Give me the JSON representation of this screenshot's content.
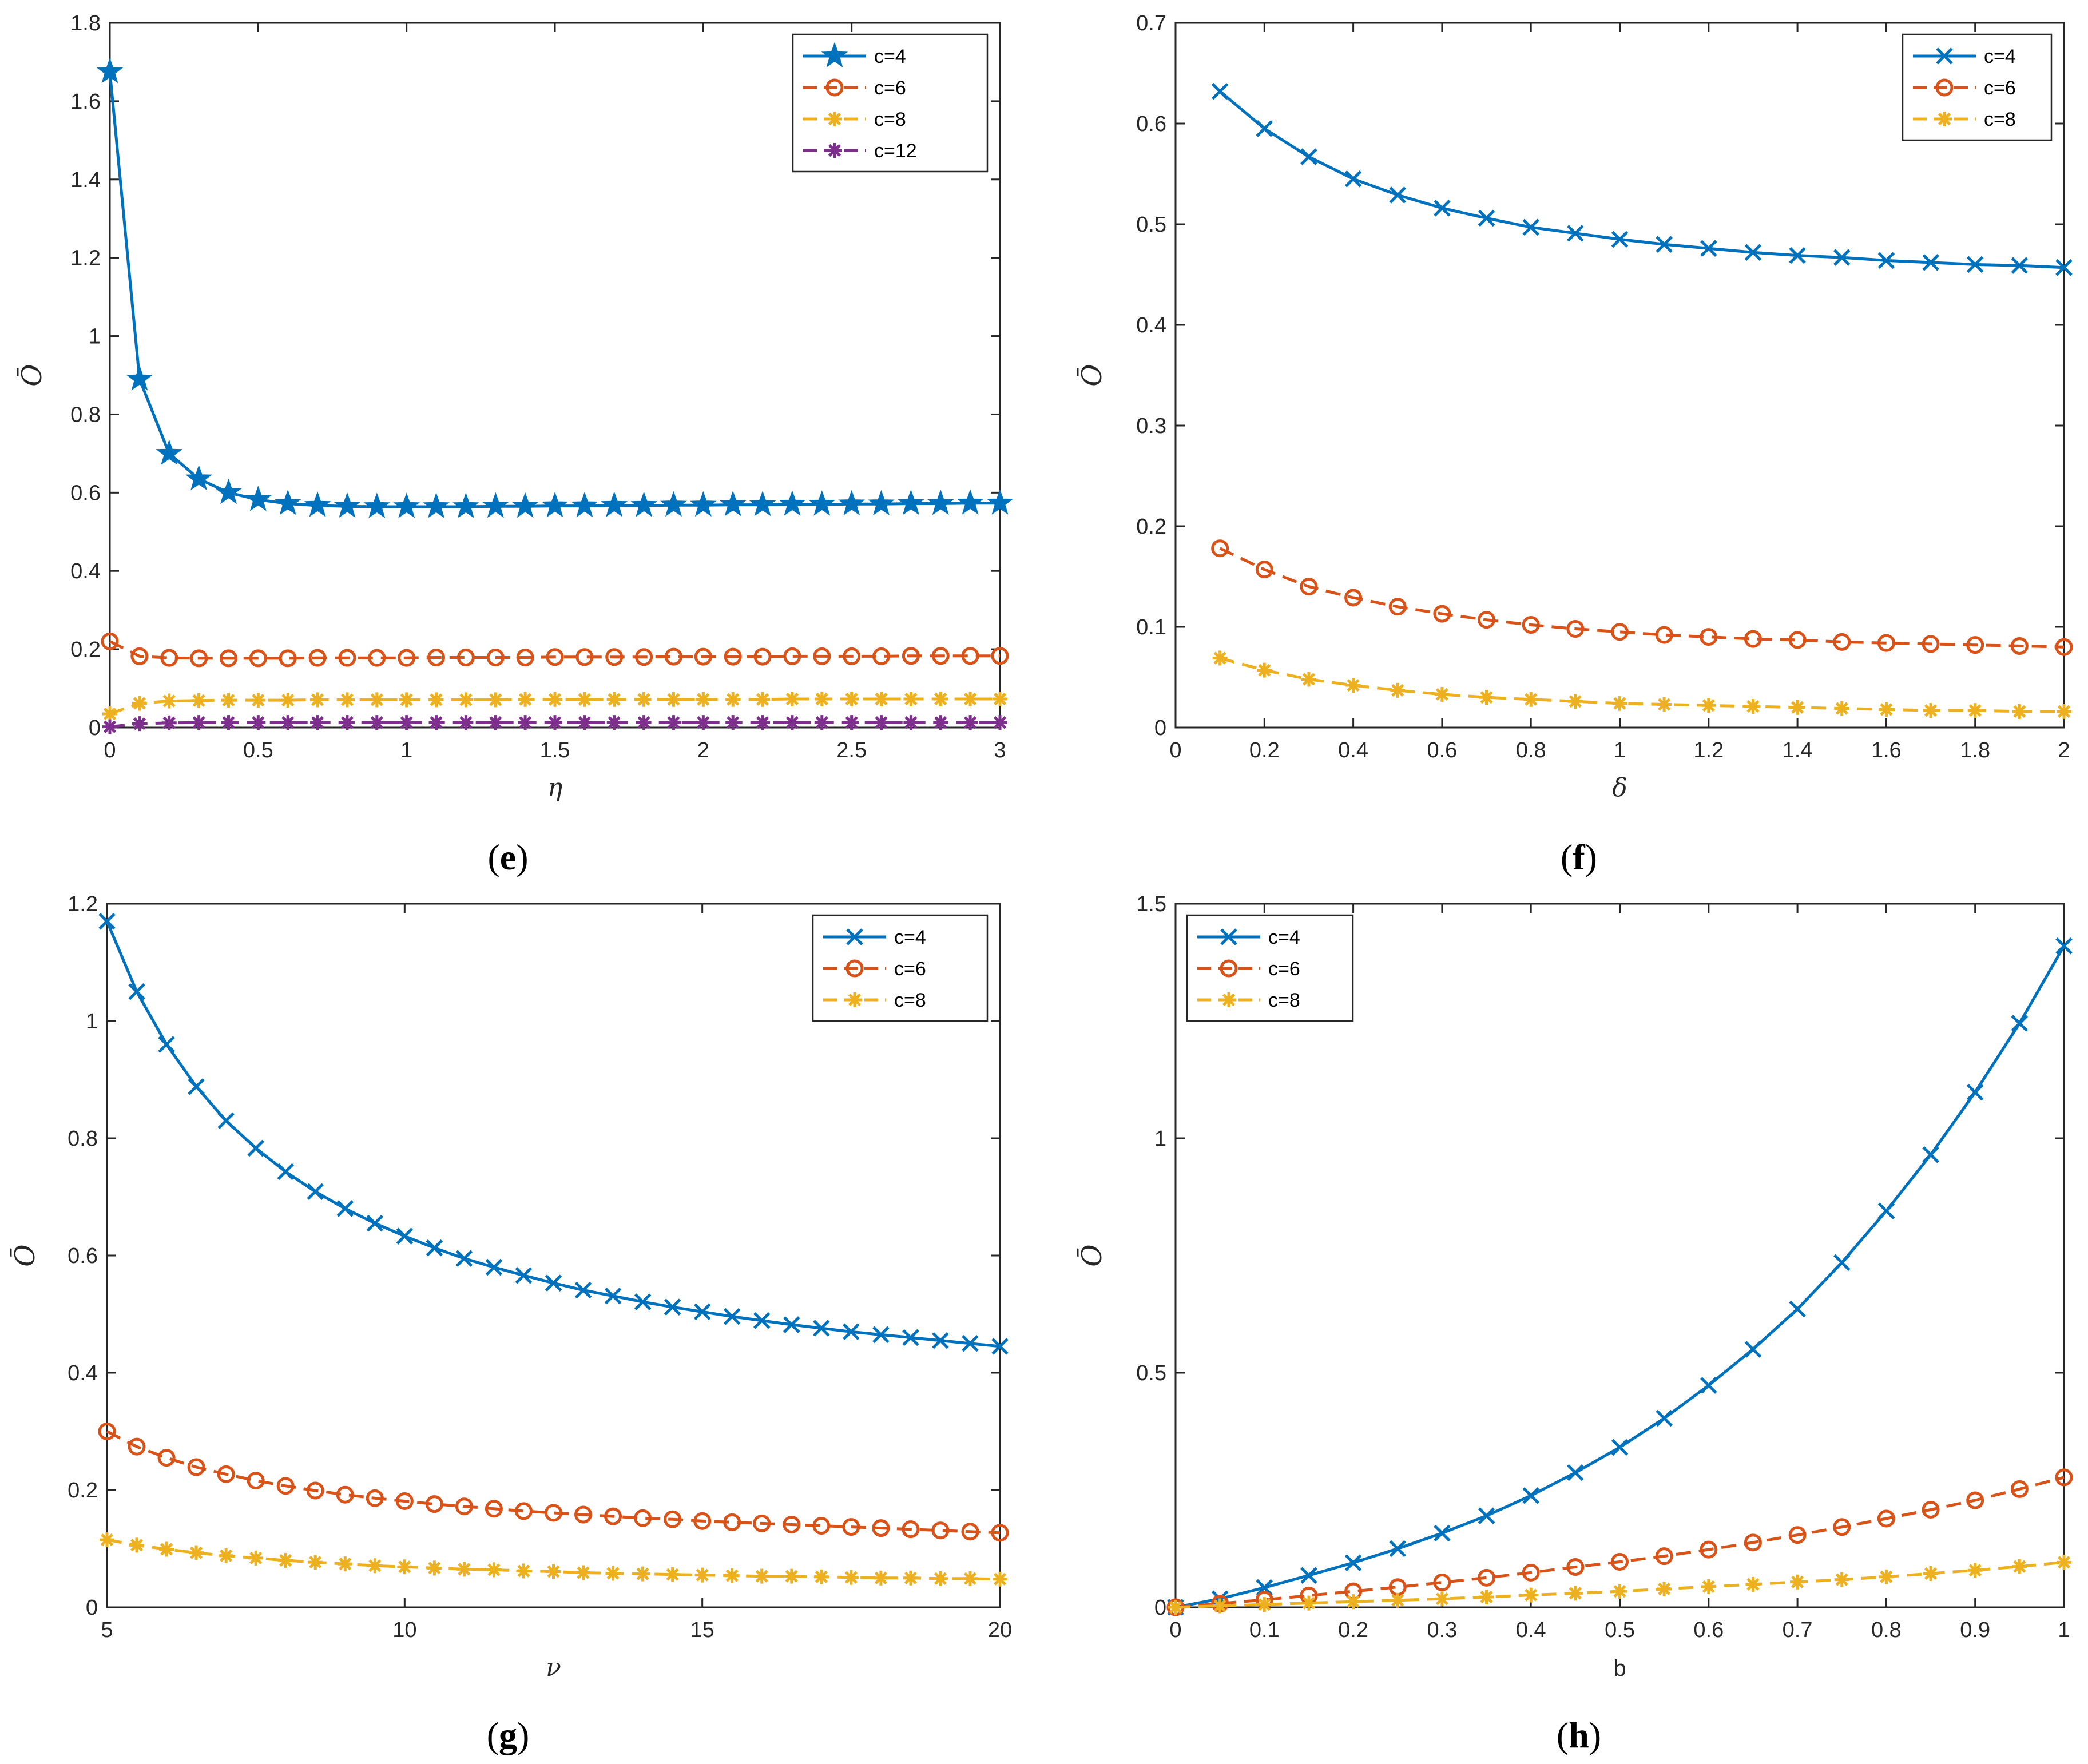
{
  "colors": {
    "c4": "#0072BD",
    "c6": "#D95319",
    "c8": "#EDB120",
    "c12": "#7E2F8E"
  },
  "chart_data": [
    {
      "id": "e",
      "type": "line",
      "caption_letter": "e",
      "xlabel": "η",
      "ylabel": "Ō",
      "xlim": [
        0,
        3
      ],
      "ylim": [
        0,
        1.8
      ],
      "xticks": [
        0,
        0.5,
        1,
        1.5,
        2,
        2.5,
        3
      ],
      "xtick_labels": [
        "0",
        "0.5",
        "1",
        "1.5",
        "2",
        "2.5",
        "3"
      ],
      "yticks": [
        0,
        0.2,
        0.4,
        0.6,
        0.8,
        1,
        1.2,
        1.4,
        1.6,
        1.8
      ],
      "ytick_labels": [
        "0",
        "0.2",
        "0.4",
        "0.6",
        "0.8",
        "1",
        "1.2",
        "1.4",
        "1.6",
        "1.8"
      ],
      "legend_position": "top-right",
      "x": [
        0,
        0.1,
        0.2,
        0.3,
        0.4,
        0.5,
        0.6,
        0.7,
        0.8,
        0.9,
        1.0,
        1.1,
        1.2,
        1.3,
        1.4,
        1.5,
        1.6,
        1.7,
        1.8,
        1.9,
        2.0,
        2.1,
        2.2,
        2.3,
        2.4,
        2.5,
        2.6,
        2.7,
        2.8,
        2.9,
        3.0
      ],
      "series": [
        {
          "name": "c=4",
          "color": "c4",
          "dash": "solid",
          "marker": "star",
          "values": [
            1.675,
            0.89,
            0.7,
            0.635,
            0.6,
            0.582,
            0.572,
            0.567,
            0.565,
            0.564,
            0.564,
            0.564,
            0.564,
            0.565,
            0.565,
            0.566,
            0.566,
            0.567,
            0.567,
            0.568,
            0.568,
            0.569,
            0.569,
            0.57,
            0.57,
            0.571,
            0.571,
            0.572,
            0.572,
            0.573,
            0.573
          ]
        },
        {
          "name": "c=6",
          "color": "c6",
          "dash": "dashed",
          "marker": "circle",
          "values": [
            0.22,
            0.182,
            0.178,
            0.177,
            0.177,
            0.177,
            0.177,
            0.178,
            0.178,
            0.178,
            0.178,
            0.179,
            0.179,
            0.179,
            0.179,
            0.18,
            0.18,
            0.18,
            0.18,
            0.181,
            0.181,
            0.181,
            0.181,
            0.182,
            0.182,
            0.182,
            0.182,
            0.183,
            0.183,
            0.183,
            0.183
          ]
        },
        {
          "name": "c=8",
          "color": "c8",
          "dash": "dashed",
          "marker": "asterisk",
          "values": [
            0.035,
            0.062,
            0.068,
            0.069,
            0.07,
            0.07,
            0.07,
            0.071,
            0.071,
            0.071,
            0.071,
            0.071,
            0.071,
            0.071,
            0.072,
            0.072,
            0.072,
            0.072,
            0.072,
            0.072,
            0.072,
            0.072,
            0.072,
            0.073,
            0.073,
            0.073,
            0.073,
            0.073,
            0.073,
            0.073,
            0.073
          ]
        },
        {
          "name": "c=12",
          "color": "c12",
          "dash": "dashed",
          "marker": "asterisk",
          "values": [
            0.002,
            0.01,
            0.012,
            0.013,
            0.013,
            0.013,
            0.013,
            0.013,
            0.013,
            0.013,
            0.013,
            0.013,
            0.013,
            0.013,
            0.013,
            0.013,
            0.013,
            0.013,
            0.013,
            0.013,
            0.013,
            0.013,
            0.013,
            0.013,
            0.013,
            0.013,
            0.013,
            0.013,
            0.013,
            0.013,
            0.013
          ]
        }
      ]
    },
    {
      "id": "f",
      "type": "line",
      "caption_letter": "f",
      "xlabel": "δ",
      "ylabel": "Ō",
      "xlim": [
        0,
        2
      ],
      "ylim": [
        0,
        0.7
      ],
      "xticks": [
        0,
        0.2,
        0.4,
        0.6,
        0.8,
        1,
        1.2,
        1.4,
        1.6,
        1.8,
        2
      ],
      "xtick_labels": [
        "0",
        "0.2",
        "0.4",
        "0.6",
        "0.8",
        "1",
        "1.2",
        "1.4",
        "1.6",
        "1.8",
        "2"
      ],
      "yticks": [
        0,
        0.1,
        0.2,
        0.3,
        0.4,
        0.5,
        0.6,
        0.7
      ],
      "ytick_labels": [
        "0",
        "0.1",
        "0.2",
        "0.3",
        "0.4",
        "0.5",
        "0.6",
        "0.7"
      ],
      "legend_position": "top-right",
      "x": [
        0.1,
        0.2,
        0.3,
        0.4,
        0.5,
        0.6,
        0.7,
        0.8,
        0.9,
        1.0,
        1.1,
        1.2,
        1.3,
        1.4,
        1.5,
        1.6,
        1.7,
        1.8,
        1.9,
        2.0
      ],
      "series": [
        {
          "name": "c=4",
          "color": "c4",
          "dash": "solid",
          "marker": "x",
          "values": [
            0.632,
            0.595,
            0.567,
            0.545,
            0.529,
            0.516,
            0.506,
            0.497,
            0.491,
            0.485,
            0.48,
            0.476,
            0.472,
            0.469,
            0.467,
            0.464,
            0.462,
            0.46,
            0.459,
            0.457
          ]
        },
        {
          "name": "c=6",
          "color": "c6",
          "dash": "dashed",
          "marker": "circle",
          "values": [
            0.178,
            0.157,
            0.14,
            0.129,
            0.12,
            0.113,
            0.107,
            0.102,
            0.098,
            0.095,
            0.092,
            0.09,
            0.088,
            0.087,
            0.085,
            0.084,
            0.083,
            0.082,
            0.081,
            0.08
          ]
        },
        {
          "name": "c=8",
          "color": "c8",
          "dash": "dashed",
          "marker": "asterisk",
          "values": [
            0.069,
            0.057,
            0.048,
            0.042,
            0.037,
            0.033,
            0.03,
            0.028,
            0.026,
            0.024,
            0.023,
            0.022,
            0.021,
            0.02,
            0.019,
            0.018,
            0.017,
            0.017,
            0.016,
            0.016
          ]
        }
      ]
    },
    {
      "id": "g",
      "type": "line",
      "caption_letter": "g",
      "xlabel": "ν",
      "ylabel": "Ō",
      "xlim": [
        5,
        20
      ],
      "ylim": [
        0,
        1.2
      ],
      "xticks": [
        5,
        10,
        15,
        20
      ],
      "xtick_labels": [
        "5",
        "10",
        "15",
        "20"
      ],
      "yticks": [
        0,
        0.2,
        0.4,
        0.6,
        0.8,
        1,
        1.2
      ],
      "ytick_labels": [
        "0",
        "0.2",
        "0.4",
        "0.6",
        "0.8",
        "1",
        "1.2"
      ],
      "legend_position": "top-right",
      "x": [
        5,
        5.5,
        6,
        6.5,
        7,
        7.5,
        8,
        8.5,
        9,
        9.5,
        10,
        10.5,
        11,
        11.5,
        12,
        12.5,
        13,
        13.5,
        14,
        14.5,
        15,
        15.5,
        16,
        16.5,
        17,
        17.5,
        18,
        18.5,
        19,
        19.5,
        20
      ],
      "series": [
        {
          "name": "c=4",
          "color": "c4",
          "dash": "solid",
          "marker": "x",
          "values": [
            1.17,
            1.05,
            0.96,
            0.888,
            0.83,
            0.783,
            0.743,
            0.709,
            0.68,
            0.655,
            0.633,
            0.613,
            0.595,
            0.58,
            0.566,
            0.553,
            0.541,
            0.531,
            0.521,
            0.512,
            0.504,
            0.496,
            0.489,
            0.482,
            0.476,
            0.47,
            0.465,
            0.46,
            0.455,
            0.45,
            0.445
          ]
        },
        {
          "name": "c=6",
          "color": "c6",
          "dash": "dashed",
          "marker": "circle",
          "values": [
            0.3,
            0.274,
            0.255,
            0.239,
            0.227,
            0.216,
            0.207,
            0.199,
            0.192,
            0.186,
            0.181,
            0.176,
            0.172,
            0.168,
            0.164,
            0.161,
            0.158,
            0.155,
            0.152,
            0.15,
            0.147,
            0.145,
            0.143,
            0.141,
            0.139,
            0.137,
            0.135,
            0.133,
            0.131,
            0.129,
            0.127
          ]
        },
        {
          "name": "c=8",
          "color": "c8",
          "dash": "dashed",
          "marker": "asterisk",
          "values": [
            0.115,
            0.106,
            0.099,
            0.093,
            0.088,
            0.084,
            0.08,
            0.077,
            0.074,
            0.071,
            0.069,
            0.067,
            0.065,
            0.064,
            0.062,
            0.061,
            0.059,
            0.058,
            0.057,
            0.056,
            0.055,
            0.054,
            0.053,
            0.053,
            0.052,
            0.051,
            0.05,
            0.05,
            0.049,
            0.049,
            0.048
          ]
        }
      ]
    },
    {
      "id": "h",
      "type": "line",
      "caption_letter": "h",
      "xlabel": "b",
      "ylabel": "Ō",
      "xlim": [
        0,
        1
      ],
      "ylim": [
        0,
        1.5
      ],
      "xticks": [
        0,
        0.1,
        0.2,
        0.3,
        0.4,
        0.5,
        0.6,
        0.7,
        0.8,
        0.9,
        1
      ],
      "xtick_labels": [
        "0",
        "0.1",
        "0.2",
        "0.3",
        "0.4",
        "0.5",
        "0.6",
        "0.7",
        "0.8",
        "0.9",
        "1"
      ],
      "yticks": [
        0,
        0.5,
        1,
        1.5
      ],
      "ytick_labels": [
        "0",
        "0.5",
        "1",
        "1.5"
      ],
      "legend_position": "top-left",
      "x": [
        0,
        0.05,
        0.1,
        0.15,
        0.2,
        0.25,
        0.3,
        0.35,
        0.4,
        0.45,
        0.5,
        0.55,
        0.6,
        0.65,
        0.7,
        0.75,
        0.8,
        0.85,
        0.9,
        0.95,
        1.0
      ],
      "series": [
        {
          "name": "c=4",
          "color": "c4",
          "dash": "solid",
          "marker": "x",
          "values": [
            0.0,
            0.018,
            0.042,
            0.068,
            0.095,
            0.125,
            0.158,
            0.195,
            0.238,
            0.287,
            0.341,
            0.403,
            0.473,
            0.55,
            0.636,
            0.735,
            0.845,
            0.965,
            1.098,
            1.245,
            1.41
          ]
        },
        {
          "name": "c=6",
          "color": "c6",
          "dash": "dashed",
          "marker": "circle",
          "values": [
            0.0,
            0.008,
            0.016,
            0.025,
            0.034,
            0.043,
            0.053,
            0.063,
            0.074,
            0.086,
            0.097,
            0.109,
            0.123,
            0.138,
            0.154,
            0.171,
            0.189,
            0.208,
            0.228,
            0.252,
            0.277
          ]
        },
        {
          "name": "c=8",
          "color": "c8",
          "dash": "dashed",
          "marker": "asterisk",
          "values": [
            0.0,
            0.003,
            0.006,
            0.009,
            0.012,
            0.015,
            0.018,
            0.022,
            0.026,
            0.03,
            0.034,
            0.039,
            0.044,
            0.049,
            0.054,
            0.059,
            0.065,
            0.072,
            0.079,
            0.087,
            0.096
          ]
        }
      ]
    }
  ]
}
